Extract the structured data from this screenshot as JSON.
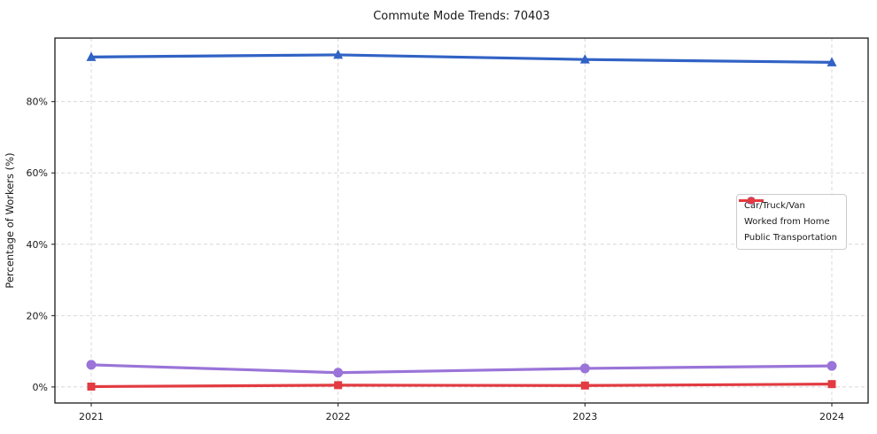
{
  "chart_data": {
    "type": "line",
    "title": "Commute Mode Trends: 70403",
    "xlabel": "",
    "ylabel": "Percentage of Workers (%)",
    "categories": [
      "2021",
      "2022",
      "2023",
      "2024"
    ],
    "series": [
      {
        "name": "Car/Truck/Van",
        "marker": "triangle",
        "color": "#3162C5",
        "values": [
          92.5,
          93.1,
          91.8,
          91.0
        ]
      },
      {
        "name": "Worked from Home",
        "marker": "circle",
        "color": "#9A74D8",
        "values": [
          6.2,
          4.0,
          5.2,
          5.9
        ]
      },
      {
        "name": "Public Transportation",
        "marker": "square",
        "color": "#E23B41",
        "values": [
          0.1,
          0.5,
          0.4,
          0.8
        ]
      }
    ],
    "ylim": [
      -4.5,
      97.8
    ],
    "yticks": [
      0,
      20,
      40,
      60,
      80
    ],
    "ytick_labels": [
      "0%",
      "20%",
      "40%",
      "60%",
      "80%"
    ],
    "grid": true,
    "grid_style": "dashed",
    "legend_position": "center-right"
  },
  "colors": {
    "axis": "#1a1a1a",
    "text": "#1a1a1a",
    "grid": "#d8d8d8",
    "legend_border": "#cccccc",
    "background": "#ffffff"
  }
}
